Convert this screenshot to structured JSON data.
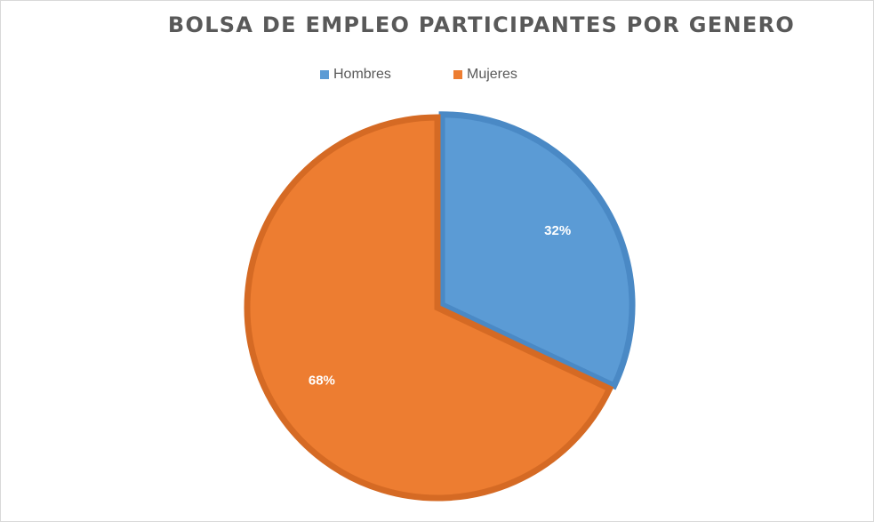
{
  "chart_data": {
    "type": "pie",
    "title": "BOLSA DE EMPLEO PARTICIPANTES POR GENERO",
    "categories": [
      "Hombres",
      "Mujeres"
    ],
    "values": [
      32,
      68
    ],
    "data_labels": [
      "32%",
      "68%"
    ],
    "colors": {
      "Hombres": "#5b9bd5",
      "Mujeres": "#ed7d31"
    },
    "edge_colors": {
      "Hombres": "#4a89c5",
      "Mujeres": "#d56a24"
    },
    "legend_position": "top"
  },
  "legend": {
    "items": [
      {
        "label": "Hombres",
        "color": "#5b9bd5"
      },
      {
        "label": "Mujeres",
        "color": "#ed7d31"
      }
    ]
  }
}
